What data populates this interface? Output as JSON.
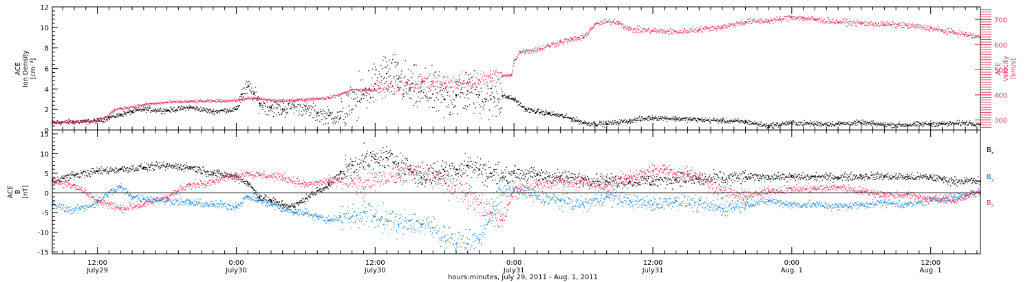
{
  "colors": {
    "black": "#000000",
    "pink": "#e8365d",
    "blue": "#1f84d6"
  },
  "xlabel": "hours:minutes, July 29, 2011 - Aug. 1, 2011",
  "x_ticks": [
    {
      "t": 12,
      "top": "12:00",
      "bottom": "July29"
    },
    {
      "t": 24,
      "top": "0:00",
      "bottom": "July30"
    },
    {
      "t": 36,
      "top": "12:00",
      "bottom": "July30"
    },
    {
      "t": 48,
      "top": "0:00",
      "bottom": "July31"
    },
    {
      "t": 60,
      "top": "12:00",
      "bottom": "July31"
    },
    {
      "t": 72,
      "top": "0:00",
      "bottom": "Aug. 1"
    },
    {
      "t": 84,
      "top": "12:00",
      "bottom": "Aug. 1"
    }
  ],
  "chart_data": [
    {
      "type": "scatter",
      "panel": "top",
      "x_unit": "hours since July 29, 2011 00:00",
      "xlim": [
        8.1,
        88.3
      ],
      "ylabel_left": [
        "ACE",
        "Ion Density",
        "[cm⁻³]"
      ],
      "ylabel_right": [
        "ACE",
        "Velocity",
        "[km/s]"
      ],
      "ylim_left": [
        0,
        12
      ],
      "ylim_right": [
        260,
        750
      ],
      "yticks_left": [
        "0",
        "2",
        "4",
        "6",
        "8",
        "10",
        "12"
      ],
      "yticks_right": [
        "300",
        "400",
        "500",
        "600",
        "700"
      ],
      "series": [
        {
          "name": "Ion Density",
          "axis": "left",
          "color": "#000000",
          "x": [
            8.1,
            10,
            11,
            12,
            13,
            14,
            15,
            16,
            18,
            20,
            22,
            24,
            24.5,
            25,
            25.5,
            26,
            27,
            28,
            29,
            30,
            31,
            32,
            33,
            34,
            35,
            35.5,
            36,
            37,
            38,
            39,
            40,
            41,
            42,
            43,
            44,
            45,
            46,
            47,
            47.5,
            48,
            49,
            50,
            51,
            52,
            53,
            54,
            55,
            56,
            58,
            60,
            62,
            64,
            66,
            68,
            70,
            72,
            74,
            76,
            78,
            80,
            82,
            84,
            85,
            86,
            87,
            88.3
          ],
          "y": [
            0.7,
            0.8,
            0.8,
            0.9,
            1.2,
            1.5,
            1.8,
            2.0,
            1.9,
            2.2,
            1.8,
            2.0,
            3.5,
            4.2,
            3.5,
            2.6,
            2.2,
            2.0,
            2.4,
            2.0,
            1.6,
            1.4,
            1.2,
            2.0,
            3.5,
            4.0,
            4.5,
            5.5,
            5.0,
            4.0,
            3.8,
            3.5,
            3.0,
            3.4,
            3.8,
            3.4,
            3.0,
            3.3,
            3.2,
            3.0,
            2.0,
            1.8,
            1.6,
            1.4,
            1.1,
            0.7,
            0.6,
            0.6,
            0.9,
            1.2,
            1.1,
            1.0,
            0.9,
            0.8,
            0.4,
            0.7,
            0.6,
            0.6,
            0.7,
            0.5,
            0.5,
            0.6,
            0.6,
            0.6,
            0.7,
            0.6
          ]
        },
        {
          "name": "Velocity",
          "axis": "right",
          "color": "#e8365d",
          "x": [
            8.1,
            10,
            12,
            12.7,
            13.5,
            14,
            16,
            18,
            20,
            22,
            24,
            25,
            26,
            27,
            28,
            29,
            30,
            31,
            32,
            33,
            34,
            35,
            36,
            37,
            38,
            39,
            40,
            41,
            42,
            43,
            44,
            45,
            46,
            47,
            47.8,
            48,
            48.5,
            49,
            50,
            51,
            52,
            53,
            54,
            55,
            56,
            57,
            58,
            60,
            62,
            64,
            66,
            68,
            70,
            71,
            72,
            73,
            74,
            76,
            78,
            80,
            82,
            84,
            85,
            86,
            87,
            88.3
          ],
          "y": [
            290,
            292,
            298,
            310,
            340,
            345,
            360,
            370,
            373,
            375,
            378,
            385,
            385,
            378,
            375,
            378,
            382,
            385,
            388,
            402,
            420,
            418,
            418,
            425,
            430,
            440,
            445,
            450,
            448,
            452,
            448,
            458,
            468,
            475,
            478,
            535,
            570,
            575,
            580,
            595,
            610,
            620,
            628,
            680,
            690,
            690,
            660,
            655,
            650,
            660,
            670,
            690,
            695,
            700,
            710,
            705,
            700,
            690,
            685,
            680,
            675,
            665,
            655,
            648,
            640,
            630
          ]
        }
      ]
    },
    {
      "type": "scatter",
      "panel": "bottom",
      "x_unit": "hours since July 29, 2011 00:00",
      "xlim": [
        8.1,
        88.3
      ],
      "ylabel_left": [
        "ACE",
        "B",
        "[nT]"
      ],
      "ylim": [
        -15.5,
        16
      ],
      "yticks": [
        "-15",
        "-10",
        "-5",
        "0",
        "5",
        "10",
        "15"
      ],
      "zero_line": true,
      "legend_position": "right",
      "series": [
        {
          "name": "Bx",
          "color": "#000000",
          "x": [
            8.1,
            10,
            12,
            14,
            16,
            18,
            20,
            22,
            24,
            25,
            26,
            27,
            28,
            29,
            30,
            31,
            32,
            33,
            34,
            35,
            36,
            37,
            38,
            39,
            40,
            41,
            42,
            43,
            44,
            45,
            46,
            47,
            48,
            50,
            52,
            54,
            56,
            58,
            60,
            62,
            64,
            66,
            68,
            70,
            72,
            74,
            76,
            78,
            80,
            82,
            84,
            85,
            86,
            87,
            88.3
          ],
          "y": [
            3.0,
            4.5,
            5.5,
            6.0,
            6.5,
            6.8,
            6.5,
            5.0,
            4.0,
            2.5,
            -1.0,
            -2.0,
            -3.0,
            -3.5,
            -1.5,
            0.5,
            2.0,
            5.0,
            7.0,
            8.0,
            8.5,
            9.0,
            7.5,
            6.0,
            4.0,
            5.0,
            5.5,
            6.0,
            7.0,
            6.0,
            5.0,
            4.0,
            5.0,
            4.5,
            4.0,
            3.5,
            3.0,
            3.0,
            3.0,
            3.5,
            3.5,
            3.5,
            4.0,
            4.0,
            4.0,
            4.0,
            4.0,
            4.2,
            4.2,
            4.0,
            4.0,
            3.5,
            3.0,
            3.0,
            3.0
          ]
        },
        {
          "name": "By",
          "color": "#1f84d6",
          "x": [
            8.1,
            10,
            12,
            13,
            14,
            15,
            16,
            18,
            20,
            22,
            24,
            25,
            26,
            27,
            28,
            29,
            30,
            31,
            32,
            33,
            34,
            35,
            36,
            37,
            38,
            39,
            40,
            41,
            42,
            43,
            44,
            45,
            46,
            47,
            48,
            50,
            52,
            54,
            56,
            58,
            60,
            62,
            64,
            66,
            68,
            70,
            72,
            74,
            76,
            78,
            80,
            82,
            84,
            85,
            86,
            87,
            88.3
          ],
          "y": [
            -3.0,
            -4.5,
            -2.5,
            0.0,
            1.5,
            -1.0,
            -1.5,
            -2.0,
            -2.5,
            -3.0,
            -3.5,
            -1.0,
            -2.0,
            -3.0,
            -4.0,
            -5.0,
            -5.0,
            -6.0,
            -7.0,
            -6.0,
            -6.0,
            -5.0,
            -6.0,
            -7.0,
            -8.0,
            -7.0,
            -8.0,
            -9.0,
            -11.0,
            -13.0,
            -13.0,
            -12.0,
            -5.0,
            0.0,
            1.0,
            -1.0,
            -2.0,
            -3.0,
            -1.0,
            -2.0,
            -3.0,
            -2.0,
            -3.0,
            -4.0,
            -3.0,
            -2.0,
            -3.0,
            -3.0,
            -3.5,
            -3.0,
            -2.5,
            -3.0,
            -2.0,
            -1.5,
            -1.0,
            -0.5,
            0.0
          ]
        },
        {
          "name": "Bz",
          "color": "#e8365d",
          "x": [
            8.1,
            10,
            12,
            14,
            16,
            18,
            20,
            22,
            23,
            24,
            25,
            26,
            28,
            30,
            32,
            34,
            35,
            36,
            38,
            40,
            42,
            44,
            46,
            47,
            48,
            50,
            52,
            54,
            56,
            58,
            60,
            61,
            62,
            63,
            64,
            66,
            68,
            70,
            72,
            74,
            76,
            78,
            80,
            82,
            84,
            86,
            87,
            88.3
          ],
          "y": [
            3.0,
            2.0,
            -2.0,
            -4.0,
            -3.0,
            -1.0,
            2.0,
            3.0,
            4.0,
            4.5,
            5.0,
            4.5,
            4.0,
            2.0,
            3.0,
            3.0,
            1.0,
            4.0,
            5.0,
            5.0,
            3.0,
            0.0,
            -5.0,
            -7.0,
            0.5,
            2.0,
            3.0,
            2.5,
            2.0,
            4.0,
            5.5,
            6.0,
            5.0,
            5.5,
            4.0,
            0.0,
            -1.0,
            0.5,
            1.0,
            1.0,
            1.5,
            0.5,
            -0.5,
            -0.5,
            -1.5,
            -2.0,
            -1.0,
            0.5
          ]
        }
      ]
    }
  ]
}
